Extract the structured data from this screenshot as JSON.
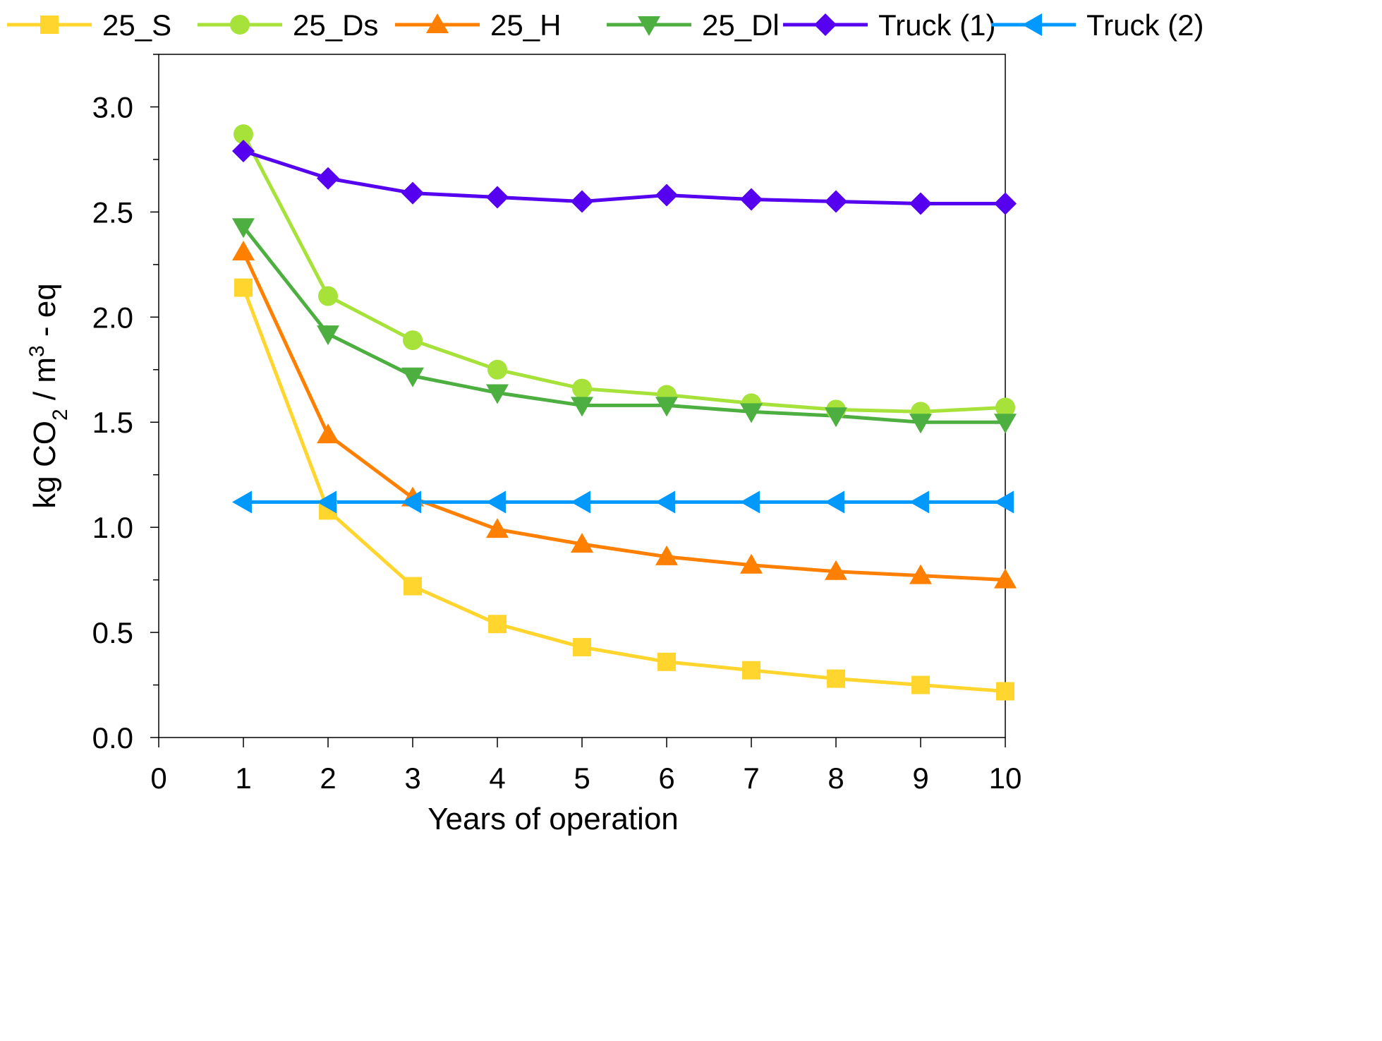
{
  "chart_data": {
    "type": "line",
    "title": "",
    "xlabel": "Years of operation",
    "ylabel": {
      "prefix": "kg CO",
      "sub": "2",
      "middle": " / m",
      "sup": "3",
      "suffix": " - eq"
    },
    "xlim": [
      0,
      10
    ],
    "ylim": [
      0,
      3.25
    ],
    "x_ticks": [
      0,
      1,
      2,
      3,
      4,
      5,
      6,
      7,
      8,
      9,
      10
    ],
    "x_tick_labels": [
      "0",
      "1",
      "2",
      "3",
      "4",
      "5",
      "6",
      "7",
      "8",
      "9",
      "10"
    ],
    "y_ticks": [
      0.0,
      0.5,
      1.0,
      1.5,
      2.0,
      2.5,
      3.0
    ],
    "y_tick_labels": [
      "0.0",
      "0.5",
      "1.0",
      "1.5",
      "2.0",
      "2.5",
      "3.0"
    ],
    "y_minor_ticks": [
      0.25,
      0.75,
      1.25,
      1.75,
      2.25,
      2.75,
      3.25
    ],
    "grid": false,
    "legend_position": "top",
    "x": [
      1,
      2,
      3,
      4,
      5,
      6,
      7,
      8,
      9,
      10
    ],
    "series": [
      {
        "name": "25_S",
        "color": "#FFD52E",
        "marker": "square",
        "values": [
          2.14,
          1.08,
          0.72,
          0.54,
          0.43,
          0.36,
          0.32,
          0.28,
          0.25,
          0.22
        ]
      },
      {
        "name": "25_Ds",
        "color": "#A6E23A",
        "marker": "circle",
        "values": [
          2.87,
          2.1,
          1.89,
          1.75,
          1.66,
          1.63,
          1.59,
          1.56,
          1.55,
          1.57
        ]
      },
      {
        "name": "25_H",
        "color": "#FF8000",
        "marker": "triangle-up",
        "values": [
          2.31,
          1.44,
          1.14,
          0.99,
          0.92,
          0.86,
          0.82,
          0.79,
          0.77,
          0.75
        ]
      },
      {
        "name": "25_Dl",
        "color": "#4CAF40",
        "marker": "triangle-down",
        "values": [
          2.43,
          1.92,
          1.72,
          1.64,
          1.58,
          1.58,
          1.55,
          1.53,
          1.5,
          1.5
        ]
      },
      {
        "name": "Truck (1)",
        "color": "#5500EE",
        "marker": "diamond",
        "values": [
          2.79,
          2.66,
          2.59,
          2.57,
          2.55,
          2.58,
          2.56,
          2.55,
          2.54,
          2.54
        ]
      },
      {
        "name": "Truck (2)",
        "color": "#0099FF",
        "marker": "triangle-left",
        "values": [
          1.12,
          1.12,
          1.12,
          1.12,
          1.12,
          1.12,
          1.12,
          1.12,
          1.12,
          1.12
        ]
      }
    ]
  }
}
